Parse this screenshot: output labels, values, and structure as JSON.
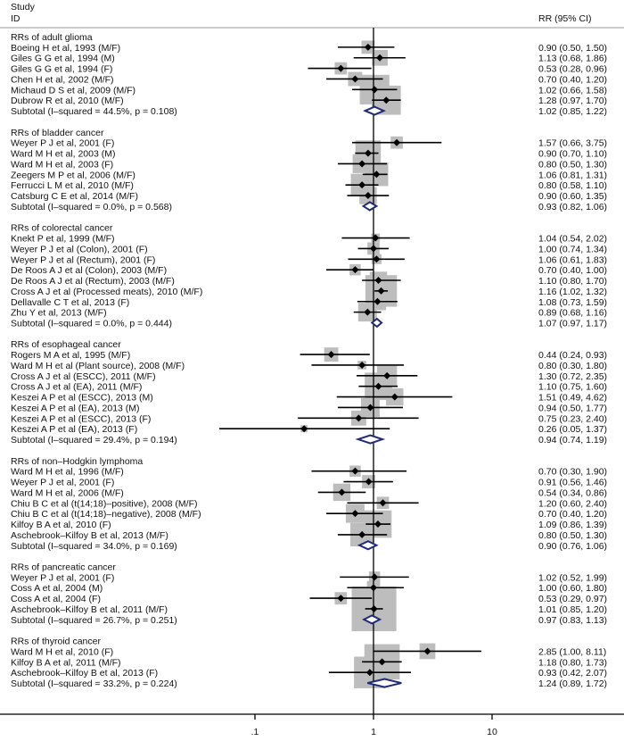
{
  "chart_data": {
    "type": "forest",
    "header": {
      "study": "Study",
      "id": "ID",
      "rr": "RR (95% CI)"
    },
    "x_scale": "log",
    "xlim": [
      0.01,
      20
    ],
    "x_ticks": [
      {
        "value": 0.1,
        "label": ".1"
      },
      {
        "value": 1,
        "label": "1"
      },
      {
        "value": 10,
        "label": "10"
      }
    ],
    "reference_line": 1,
    "colors": {
      "box": "#bdbdbd",
      "diamond": "#1f2a78",
      "line": "#000000",
      "header_rule": "#bbbbbb"
    },
    "groups": [
      {
        "title": "RRs of adult glioma",
        "studies": [
          {
            "label": "Boeing H et al, 1993 (M/F)",
            "rr": 0.9,
            "lo": 0.5,
            "hi": 1.5,
            "ci": "0.90 (0.50, 1.50)",
            "weight": 7
          },
          {
            "label": "Giles G G et al, 1994 (M)",
            "rr": 1.13,
            "lo": 0.68,
            "hi": 1.86,
            "ci": "1.13 (0.68, 1.86)",
            "weight": 10
          },
          {
            "label": "Giles G G et al, 1994 (F)",
            "rr": 0.53,
            "lo": 0.28,
            "hi": 0.96,
            "ci": "0.53 (0.28, 0.96)",
            "weight": 6
          },
          {
            "label": "Chen H et al, 2002 (M/F)",
            "rr": 0.7,
            "lo": 0.4,
            "hi": 1.2,
            "ci": "0.70 (0.40, 1.20)",
            "weight": 8
          },
          {
            "label": "Michaud D S et al, 2009 (M/F)",
            "rr": 1.02,
            "lo": 0.66,
            "hi": 1.58,
            "ci": "1.02 (0.66, 1.58)",
            "weight": 35
          },
          {
            "label": "Dubrow R et al, 2010 (M/F)",
            "rr": 1.28,
            "lo": 0.97,
            "hi": 1.7,
            "ci": "1.28 (0.97, 1.70)",
            "weight": 34
          }
        ],
        "subtotal": {
          "label": "Subtotal  (I–squared = 44.5%, p = 0.108)",
          "rr": 1.02,
          "lo": 0.85,
          "hi": 1.22,
          "ci": "1.02 (0.85, 1.22)"
        }
      },
      {
        "title": "RRs of bladder cancer",
        "studies": [
          {
            "label": "Weyer P J et al, 2001 (F)",
            "rr": 1.57,
            "lo": 0.66,
            "hi": 3.75,
            "ci": "1.57 (0.66, 3.75)",
            "weight": 6
          },
          {
            "label": "Ward M H et al, 2003 (M)",
            "rr": 0.9,
            "lo": 0.7,
            "hi": 1.1,
            "ci": "0.90 (0.70, 1.10)",
            "weight": 26
          },
          {
            "label": "Ward M H et al, 2003 (F)",
            "rr": 0.8,
            "lo": 0.5,
            "hi": 1.3,
            "ci": "0.80 (0.50, 1.30)",
            "weight": 14
          },
          {
            "label": "Zeegers M P et al, 2006 (M/F)",
            "rr": 1.06,
            "lo": 0.81,
            "hi": 1.31,
            "ci": "1.06 (0.81, 1.31)",
            "weight": 22
          },
          {
            "label": "Ferrucci L M et al, 2010 (M/F)",
            "rr": 0.8,
            "lo": 0.58,
            "hi": 1.1,
            "ci": "0.80 (0.58, 1.10)",
            "weight": 20
          },
          {
            "label": "Catsburg C E et al, 2014 (M/F)",
            "rr": 0.9,
            "lo": 0.6,
            "hi": 1.35,
            "ci": "0.90 (0.60, 1.35)",
            "weight": 12
          }
        ],
        "subtotal": {
          "label": "Subtotal  (I–squared = 0.0%, p = 0.568)",
          "rr": 0.93,
          "lo": 0.82,
          "hi": 1.06,
          "ci": "0.93 (0.82, 1.06)"
        }
      },
      {
        "title": "RRs of colorectal cancer",
        "studies": [
          {
            "label": "Knekt P et al, 1999 (M/F)",
            "rr": 1.04,
            "lo": 0.54,
            "hi": 2.02,
            "ci": "1.04 (0.54, 2.02)",
            "weight": 3
          },
          {
            "label": "Weyer P J et al (Colon), 2001 (F)",
            "rr": 1.0,
            "lo": 0.74,
            "hi": 1.34,
            "ci": "1.00 (0.74, 1.34)",
            "weight": 6
          },
          {
            "label": "Weyer P J et al (Rectum), 2001 (F)",
            "rr": 1.06,
            "lo": 0.61,
            "hi": 1.83,
            "ci": "1.06 (0.61, 1.83)",
            "weight": 4
          },
          {
            "label": "De Roos A J et al (Colon), 2003 (M/F)",
            "rr": 0.7,
            "lo": 0.4,
            "hi": 1.0,
            "ci": "0.70 (0.40, 1.00)",
            "weight": 5
          },
          {
            "label": "De Roos A J et al (Rectum), 2003 (M/F)",
            "rr": 1.1,
            "lo": 0.8,
            "hi": 1.7,
            "ci": "1.10 (0.80, 1.70)",
            "weight": 12
          },
          {
            "label": "Cross A J et al (Processed meats), 2010 (M/F)",
            "rr": 1.16,
            "lo": 1.02,
            "hi": 1.32,
            "ci": "1.16 (1.02, 1.32)",
            "weight": 40
          },
          {
            "label": "Dellavalle C T et al, 2013 (F)",
            "rr": 1.08,
            "lo": 0.73,
            "hi": 1.59,
            "ci": "1.08 (0.73, 1.59)",
            "weight": 12
          },
          {
            "label": "Zhu Y et al, 2013 (M/F)",
            "rr": 0.89,
            "lo": 0.68,
            "hi": 1.16,
            "ci": "0.89 (0.68, 1.16)",
            "weight": 14
          }
        ],
        "subtotal": {
          "label": "Subtotal  (I–squared = 0.0%, p = 0.444)",
          "rr": 1.07,
          "lo": 0.97,
          "hi": 1.17,
          "ci": "1.07 (0.97, 1.17)"
        }
      },
      {
        "title": "RRs of esophageal cancer",
        "studies": [
          {
            "label": "Rogers M A et al, 1995 (M/F)",
            "rr": 0.44,
            "lo": 0.24,
            "hi": 0.93,
            "ci": "0.44 (0.24, 0.93)",
            "weight": 8
          },
          {
            "label": "Ward M H et al (Plant source), 2008 (M/F)",
            "rr": 0.8,
            "lo": 0.3,
            "hi": 1.8,
            "ci": "0.80 (0.30, 1.80)",
            "weight": 3
          },
          {
            "label": "Cross A J et al (ESCC), 2011 (M/F)",
            "rr": 1.3,
            "lo": 0.72,
            "hi": 2.35,
            "ci": "1.30 (0.72, 2.35)",
            "weight": 16
          },
          {
            "label": "Cross A J et al (EA), 2011 (M/F)",
            "rr": 1.1,
            "lo": 0.75,
            "hi": 1.6,
            "ci": "1.10 (0.75, 1.60)",
            "weight": 30
          },
          {
            "label": "Keszei A P et al (ESCC), 2013 (M)",
            "rr": 1.51,
            "lo": 0.49,
            "hi": 4.62,
            "ci": "1.51 (0.49, 4.62)",
            "weight": 12
          },
          {
            "label": "Keszei A P et al (EA), 2013 (M)",
            "rr": 0.94,
            "lo": 0.5,
            "hi": 1.77,
            "ci": "0.94 (0.50, 1.77)",
            "weight": 14
          },
          {
            "label": "Keszei A P et al (ESCC), 2013 (F)",
            "rr": 0.75,
            "lo": 0.23,
            "hi": 2.4,
            "ci": "0.75 (0.23, 2.40)",
            "weight": 9
          },
          {
            "label": "Keszei A P et al (EA), 2013 (F)",
            "rr": 0.26,
            "lo": 0.05,
            "hi": 1.37,
            "ci": "0.26 (0.05, 1.37)",
            "weight": 2
          }
        ],
        "subtotal": {
          "label": "Subtotal  (I–squared = 29.4%, p = 0.194)",
          "rr": 0.94,
          "lo": 0.74,
          "hi": 1.19,
          "ci": "0.94 (0.74, 1.19)"
        }
      },
      {
        "title": "RRs of non–Hodgkin lymphoma",
        "studies": [
          {
            "label": "Ward M H et al, 1996 (M/F)",
            "rr": 0.7,
            "lo": 0.3,
            "hi": 1.9,
            "ci": "0.70 (0.30, 1.90)",
            "weight": 5
          },
          {
            "label": "Weyer P J et al, 2001 (F)",
            "rr": 0.91,
            "lo": 0.56,
            "hi": 1.46,
            "ci": "0.91 (0.56, 1.46)",
            "weight": 7
          },
          {
            "label": "Ward M H et al, 2006 (M/F)",
            "rr": 0.54,
            "lo": 0.34,
            "hi": 0.86,
            "ci": "0.54 (0.34, 0.86)",
            "weight": 12
          },
          {
            "label": "Chiu B C et al (t(14;18)–positive), 2008 (M/F)",
            "rr": 1.2,
            "lo": 0.6,
            "hi": 2.4,
            "ci": "1.20 (0.60, 2.40)",
            "weight": 6
          },
          {
            "label": "Chiu B C et al (t(14;18)–negative), 2008 (M/F)",
            "rr": 0.7,
            "lo": 0.4,
            "hi": 1.2,
            "ci": "0.70 (0.40, 1.20)",
            "weight": 14
          },
          {
            "label": "Kilfoy B A et al, 2010 (F)",
            "rr": 1.09,
            "lo": 0.86,
            "hi": 1.39,
            "ci": "1.09 (0.86, 1.39)",
            "weight": 30
          },
          {
            "label": "Aschebrook–Kilfoy B et al, 2013 (M/F)",
            "rr": 0.8,
            "lo": 0.5,
            "hi": 1.3,
            "ci": "0.80 (0.50, 1.30)",
            "weight": 22
          }
        ],
        "subtotal": {
          "label": "Subtotal  (I–squared = 34.0%, p = 0.169)",
          "rr": 0.9,
          "lo": 0.76,
          "hi": 1.06,
          "ci": "0.90 (0.76, 1.06)"
        }
      },
      {
        "title": "RRs of pancreatic cancer",
        "studies": [
          {
            "label": "Weyer P J et al, 2001 (F)",
            "rr": 1.02,
            "lo": 0.52,
            "hi": 1.99,
            "ci": "1.02 (0.52, 1.99)",
            "weight": 5
          },
          {
            "label": "Coss A et al, 2004 (M)",
            "rr": 1.0,
            "lo": 0.6,
            "hi": 1.8,
            "ci": "1.00 (0.60, 1.80)",
            "weight": 7
          },
          {
            "label": "Coss A et al, 2004 (F)",
            "rr": 0.53,
            "lo": 0.29,
            "hi": 0.97,
            "ci": "0.53 (0.29, 0.97)",
            "weight": 6
          },
          {
            "label": "Aschebrook–Kilfoy B et al, 2011 (M/F)",
            "rr": 1.01,
            "lo": 0.85,
            "hi": 1.2,
            "ci": "1.01 (0.85, 1.20)",
            "weight": 80
          }
        ],
        "subtotal": {
          "label": "Subtotal  (I–squared = 26.7%, p = 0.251)",
          "rr": 0.97,
          "lo": 0.83,
          "hi": 1.13,
          "ci": "0.97 (0.83, 1.13)"
        }
      },
      {
        "title": "RRs of thyroid cancer",
        "studies": [
          {
            "label": "Ward M H et al, 2010 (F)",
            "rr": 2.85,
            "lo": 1.0,
            "hi": 8.11,
            "ci": "2.85 (1.00, 8.11)",
            "weight": 10
          },
          {
            "label": "Kilfoy B A et al, 2011 (M/F)",
            "rr": 1.18,
            "lo": 0.8,
            "hi": 1.73,
            "ci": "1.18 (0.80, 1.73)",
            "weight": 50
          },
          {
            "label": "Aschebrook–Kilfoy B et al, 2013 (F)",
            "rr": 0.93,
            "lo": 0.42,
            "hi": 2.07,
            "ci": "0.93 (0.42, 2.07)",
            "weight": 40
          }
        ],
        "subtotal": {
          "label": "Subtotal  (I–squared = 33.2%, p = 0.224)",
          "rr": 1.24,
          "lo": 0.89,
          "hi": 1.72,
          "ci": "1.24 (0.89, 1.72)"
        }
      }
    ]
  }
}
